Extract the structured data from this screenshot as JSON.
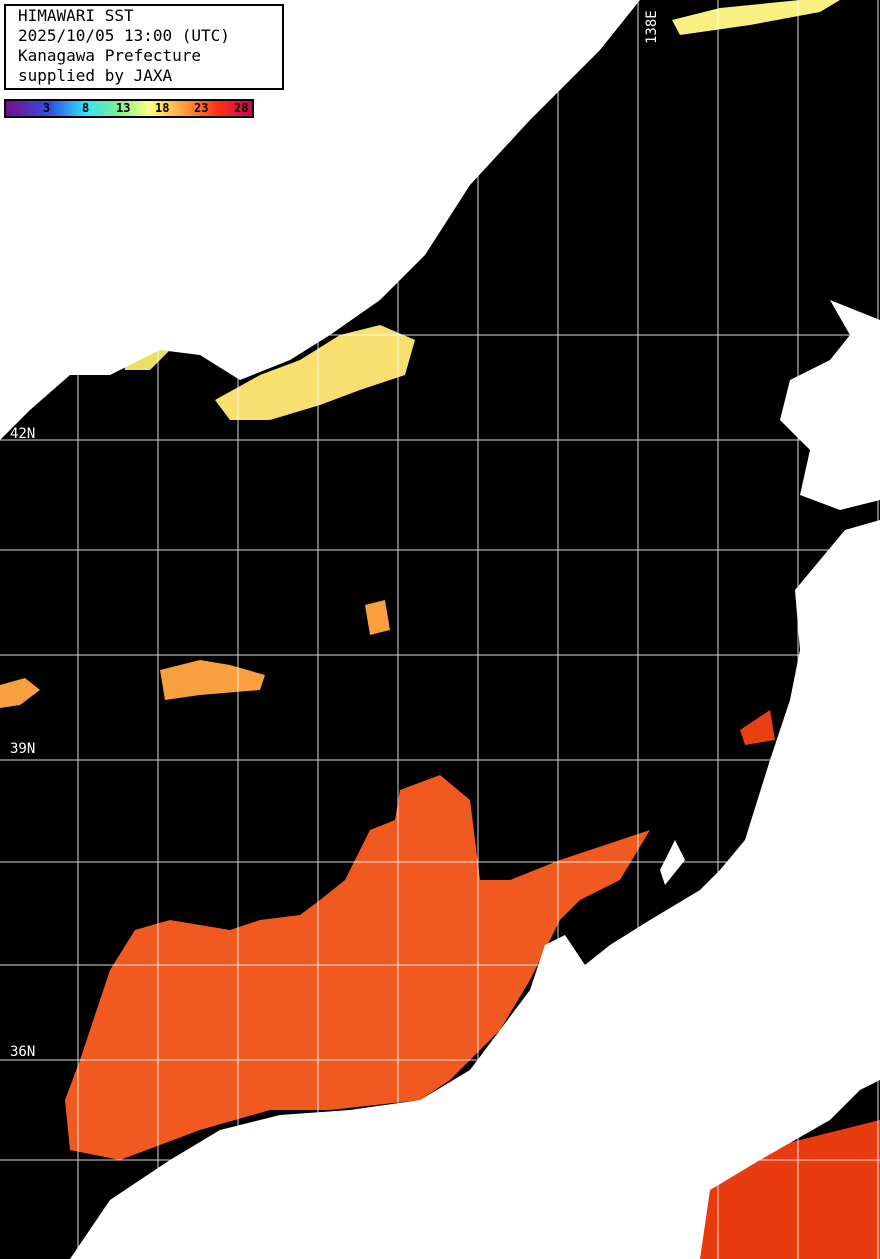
{
  "info": {
    "title": "HIMAWARI SST",
    "datetime": "2025/10/05 13:00 (UTC)",
    "region": "Kanagawa Prefecture",
    "credit": "supplied by JAXA"
  },
  "colorbar": {
    "ticks": [
      "3",
      "8",
      "13",
      "18",
      "23",
      "28"
    ],
    "colors": [
      "#7a0a8f",
      "#3050e0",
      "#30e0ff",
      "#80f090",
      "#ffff80",
      "#ffa040",
      "#ff3010",
      "#d00060"
    ]
  },
  "grid": {
    "lat_labels": [
      "42N",
      "39N",
      "36N"
    ],
    "lon_labels": [
      "138E"
    ]
  },
  "colors": {
    "ocean_no_data": "#000000",
    "land": "#ffffff",
    "grid": "#ffffff"
  }
}
